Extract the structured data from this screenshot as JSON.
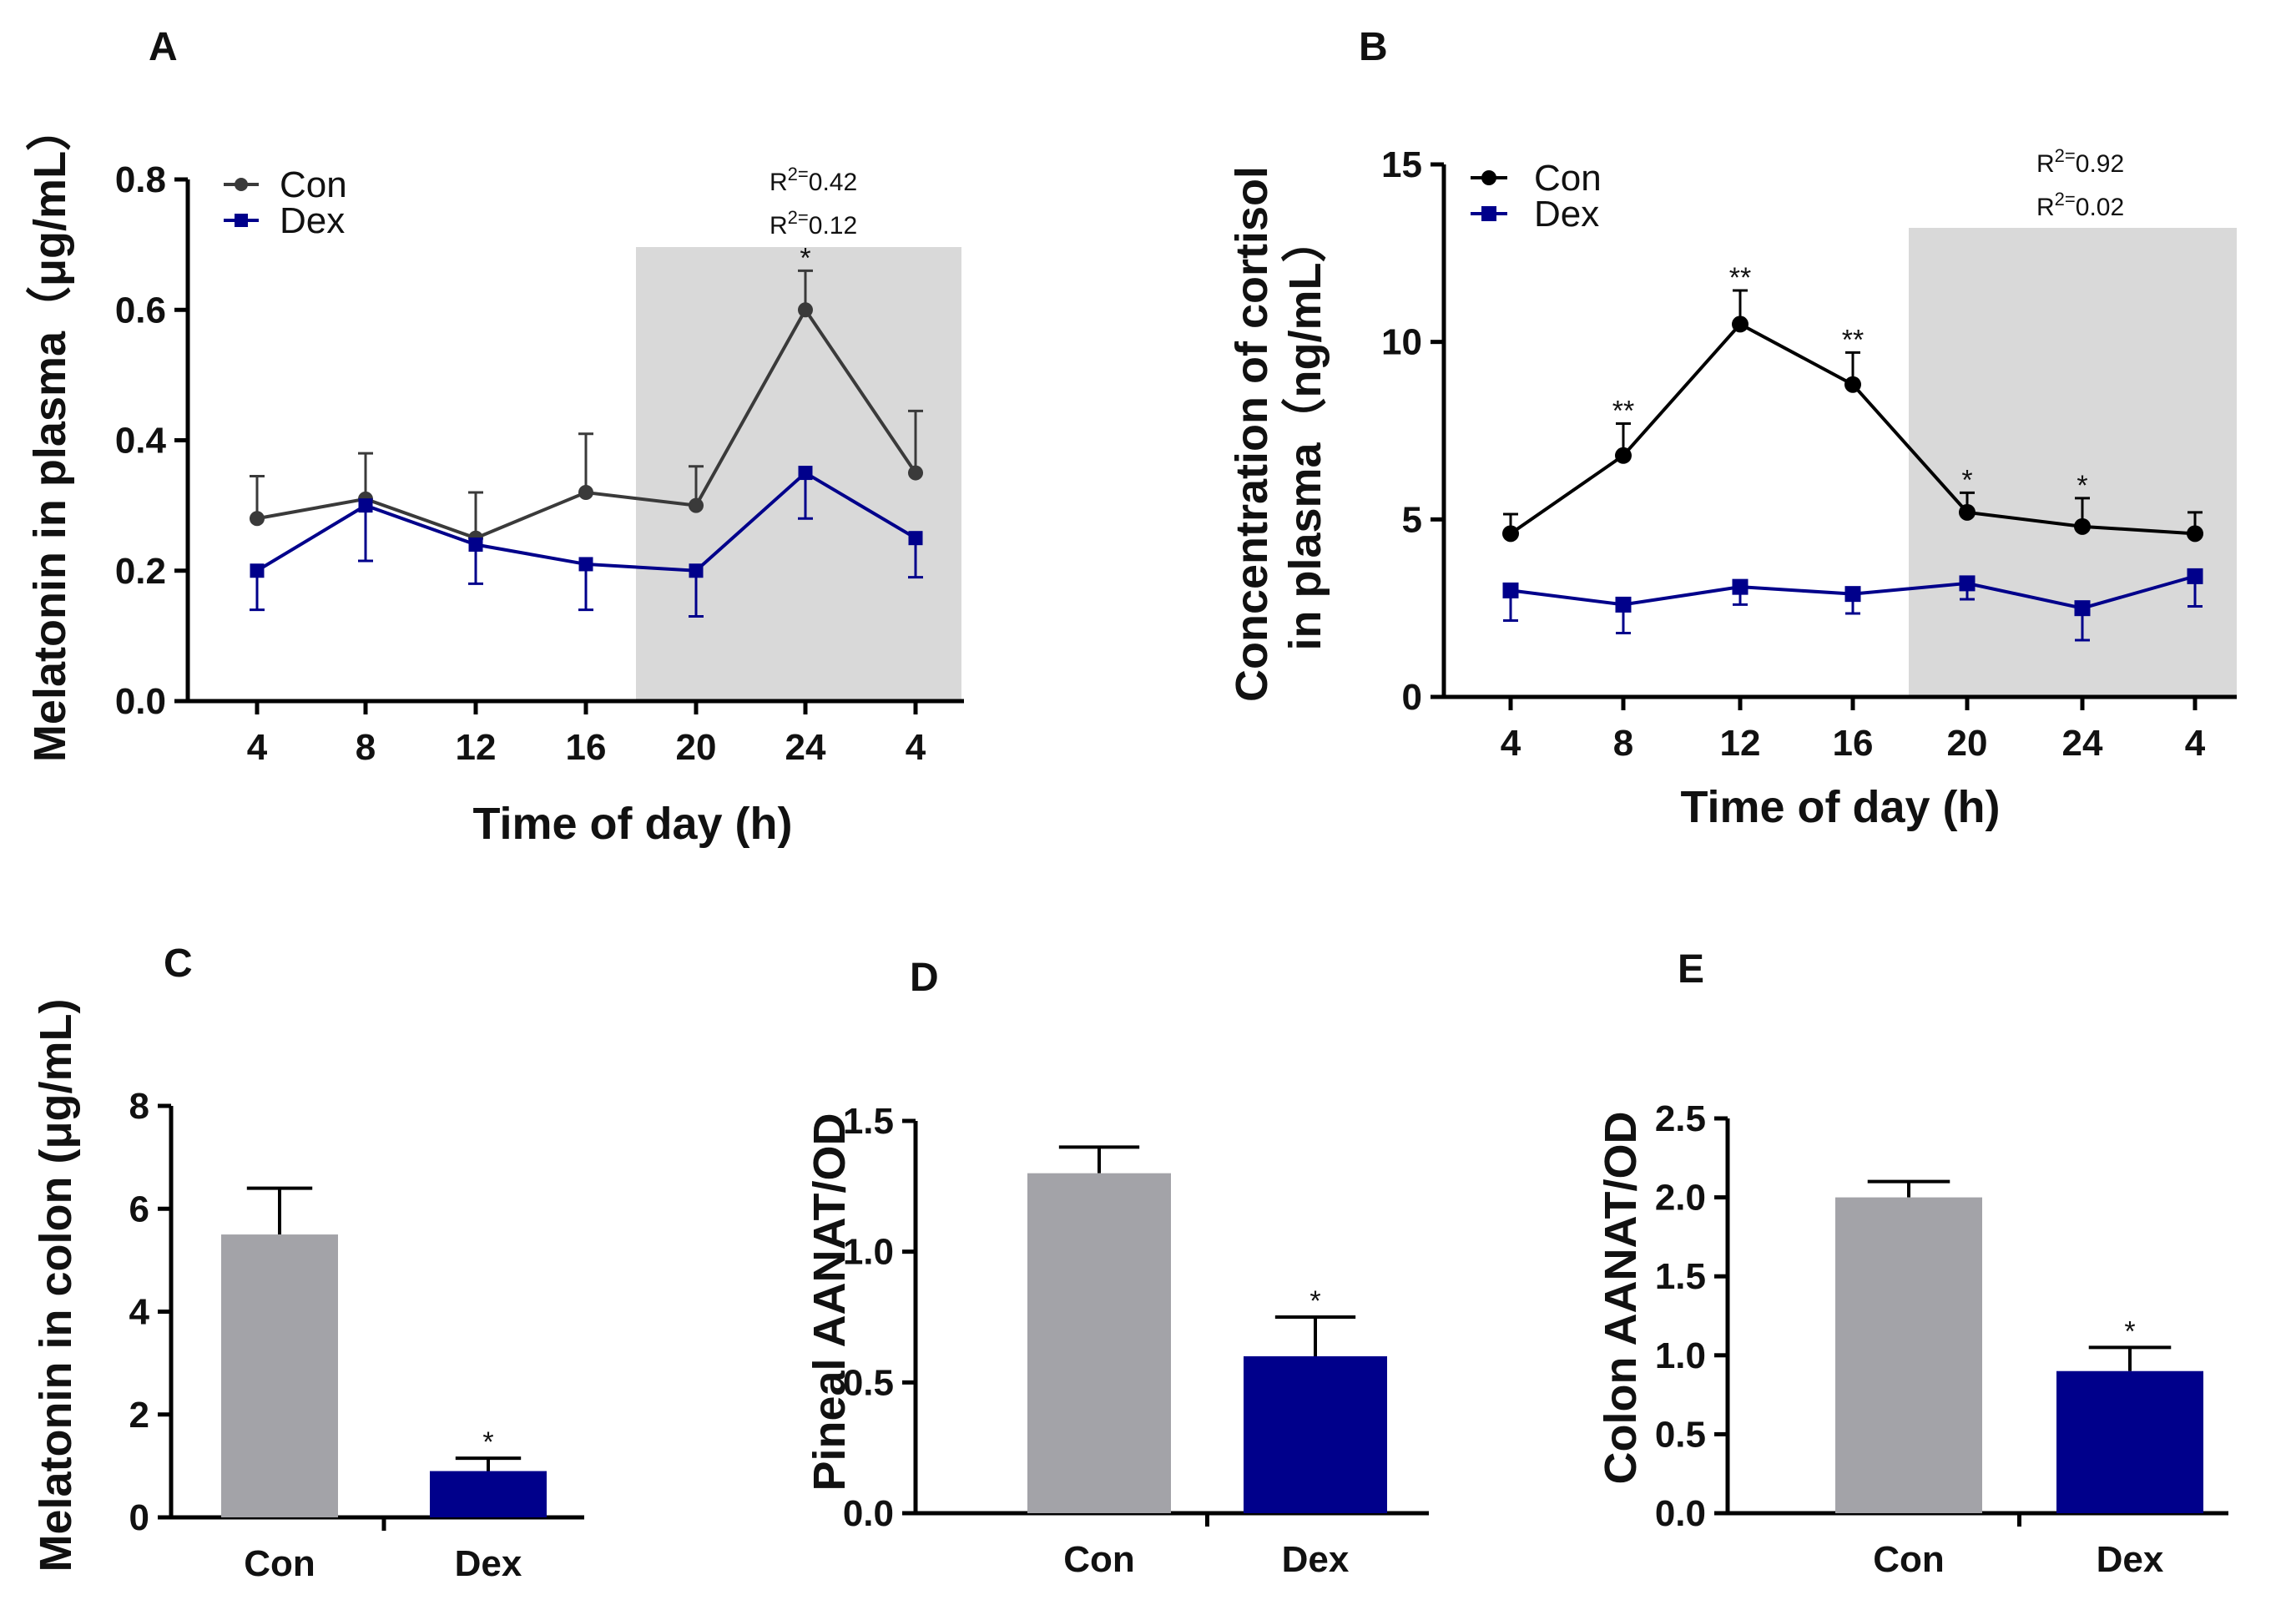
{
  "colors": {
    "con_line_A": "#3a3a3a",
    "con_line_B": "#000000",
    "dex": "#00008b",
    "con_bar": "#a3a3a8",
    "dex_bar": "#00008b",
    "shade": "#d9d9d9"
  },
  "chart_data": [
    {
      "panel": "A",
      "type": "line",
      "xlabel": "Time of day (h)",
      "ylabel": "Melatonin in plasma（μg/mL）",
      "categories": [
        "4",
        "8",
        "12",
        "16",
        "20",
        "24",
        "4"
      ],
      "ylim": [
        0,
        0.8
      ],
      "yticks": [
        "0.0",
        "0.2",
        "0.4",
        "0.6",
        "0.8"
      ],
      "ytick_values": [
        0,
        0.2,
        0.4,
        0.6,
        0.8
      ],
      "shaded_region": {
        "from_index": 4,
        "to_index": 6
      },
      "series": [
        {
          "name": "Con",
          "marker": "circle",
          "values": [
            0.28,
            0.31,
            0.25,
            0.32,
            0.3,
            0.6,
            0.35
          ],
          "errors": [
            0.065,
            0.07,
            0.07,
            0.09,
            0.06,
            0.06,
            0.095
          ],
          "error_dir": "up"
        },
        {
          "name": "Dex",
          "marker": "square",
          "values": [
            0.2,
            0.3,
            0.24,
            0.21,
            0.2,
            0.35,
            0.25
          ],
          "errors": [
            0.06,
            0.085,
            0.06,
            0.07,
            0.07,
            0.07,
            0.06
          ],
          "error_dir": "down"
        }
      ],
      "significance": [
        {
          "series": "Con",
          "index": 5,
          "label": "*"
        }
      ],
      "r2_labels": [
        {
          "base": "R",
          "sup": "2=",
          "value": "0.42"
        },
        {
          "base": "R",
          "sup": "2=",
          "value": "0.12"
        }
      ]
    },
    {
      "panel": "B",
      "type": "line",
      "xlabel": "Time of day (h)",
      "ylabel_line1": "Concentration of cortisol",
      "ylabel_line2": "in plasma（ng/mL）",
      "categories": [
        "4",
        "8",
        "12",
        "16",
        "20",
        "24",
        "4"
      ],
      "ylim": [
        0,
        15
      ],
      "yticks": [
        "0",
        "5",
        "10",
        "15"
      ],
      "ytick_values": [
        0,
        5,
        10,
        15
      ],
      "shaded_region": {
        "from_index": 4,
        "to_index": 6
      },
      "series": [
        {
          "name": "Con",
          "marker": "circle",
          "values": [
            4.6,
            6.8,
            10.5,
            8.8,
            5.2,
            4.8,
            4.6
          ],
          "errors": [
            0.55,
            0.9,
            0.95,
            0.9,
            0.55,
            0.8,
            0.6
          ],
          "error_dir": "up"
        },
        {
          "name": "Dex",
          "marker": "square",
          "values": [
            3.0,
            2.6,
            3.1,
            2.9,
            3.2,
            2.5,
            3.4
          ],
          "errors": [
            0.85,
            0.8,
            0.5,
            0.55,
            0.45,
            0.9,
            0.85
          ],
          "error_dir": "down"
        }
      ],
      "significance": [
        {
          "series": "Con",
          "index": 1,
          "label": "**"
        },
        {
          "series": "Con",
          "index": 2,
          "label": "**"
        },
        {
          "series": "Con",
          "index": 3,
          "label": "**"
        },
        {
          "series": "Con",
          "index": 4,
          "label": "*"
        },
        {
          "series": "Con",
          "index": 5,
          "label": "*"
        }
      ],
      "r2_labels": [
        {
          "base": "R",
          "sup": "2=",
          "value": "0.92"
        },
        {
          "base": "R",
          "sup": "2=",
          "value": "0.02"
        }
      ]
    },
    {
      "panel": "C",
      "type": "bar",
      "ylabel": "Melatonin in colon (μg/mL)",
      "categories": [
        "Con",
        "Dex"
      ],
      "values": [
        5.5,
        0.9
      ],
      "errors": [
        0.9,
        0.25
      ],
      "ylim": [
        0,
        8
      ],
      "yticks": [
        "0",
        "2",
        "4",
        "6",
        "8"
      ],
      "ytick_values": [
        0,
        2,
        4,
        6,
        8
      ],
      "significance": [
        {
          "index": 1,
          "label": "*"
        }
      ]
    },
    {
      "panel": "D",
      "type": "bar",
      "ylabel": "Pineal AANAT/OD",
      "categories": [
        "Con",
        "Dex"
      ],
      "values": [
        1.3,
        0.6
      ],
      "errors": [
        0.1,
        0.15
      ],
      "ylim": [
        0,
        1.5
      ],
      "yticks": [
        "0.0",
        "0.5",
        "1.0",
        "1.5"
      ],
      "ytick_values": [
        0,
        0.5,
        1.0,
        1.5
      ],
      "significance": [
        {
          "index": 1,
          "label": "*"
        }
      ]
    },
    {
      "panel": "E",
      "type": "bar",
      "ylabel": "Colon AANAT/OD",
      "categories": [
        "Con",
        "Dex"
      ],
      "values": [
        2.0,
        0.9
      ],
      "errors": [
        0.1,
        0.15
      ],
      "ylim": [
        0,
        2.5
      ],
      "yticks": [
        "0.0",
        "0.5",
        "1.0",
        "1.5",
        "2.0",
        "2.5"
      ],
      "ytick_values": [
        0,
        0.5,
        1.0,
        1.5,
        2.0,
        2.5
      ],
      "significance": [
        {
          "index": 1,
          "label": "*"
        }
      ]
    }
  ]
}
